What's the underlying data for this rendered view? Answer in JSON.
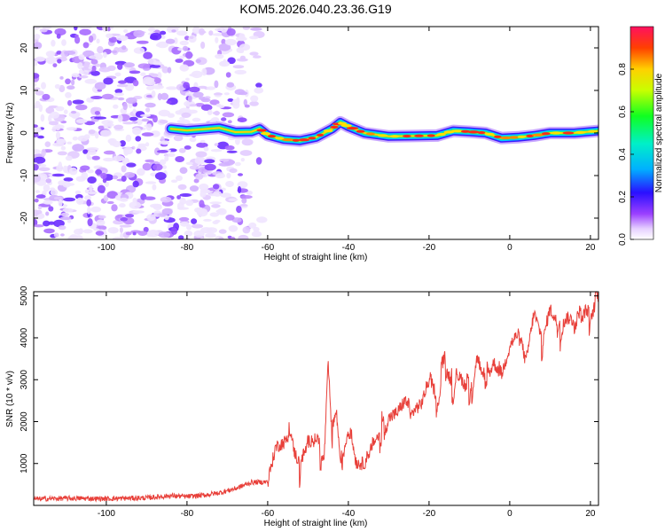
{
  "title": "KOM5.2026.040.23.36.G19",
  "chart_data": [
    {
      "type": "heatmap",
      "xlabel": "Height of straight line (km)",
      "ylabel": "Frequency (Hz)",
      "xlim": [
        -118,
        22
      ],
      "ylim": [
        -25,
        25
      ],
      "xticks": [
        -100,
        -80,
        -60,
        -40,
        -20,
        0,
        20
      ],
      "yticks": [
        -20,
        -10,
        0,
        10,
        20
      ],
      "noise_region_x": [
        -118,
        -64
      ],
      "track": [
        {
          "x": -84,
          "y": 1.0
        },
        {
          "x": -80,
          "y": 0.6
        },
        {
          "x": -76,
          "y": 0.9
        },
        {
          "x": -72,
          "y": 1.2
        },
        {
          "x": -68,
          "y": 0.2
        },
        {
          "x": -64,
          "y": 0.3
        },
        {
          "x": -62,
          "y": 1.0
        },
        {
          "x": -60,
          "y": -0.5
        },
        {
          "x": -56,
          "y": -1.5
        },
        {
          "x": -52,
          "y": -1.8
        },
        {
          "x": -48,
          "y": -1.0
        },
        {
          "x": -44,
          "y": 1.0
        },
        {
          "x": -42,
          "y": 2.5
        },
        {
          "x": -40,
          "y": 1.5
        },
        {
          "x": -36,
          "y": 0.0
        },
        {
          "x": -30,
          "y": -0.8
        },
        {
          "x": -24,
          "y": -0.7
        },
        {
          "x": -18,
          "y": -0.6
        },
        {
          "x": -14,
          "y": 0.5
        },
        {
          "x": -10,
          "y": 0.3
        },
        {
          "x": -6,
          "y": 0.0
        },
        {
          "x": -2,
          "y": -1.2
        },
        {
          "x": 2,
          "y": -1.0
        },
        {
          "x": 6,
          "y": -0.6
        },
        {
          "x": 10,
          "y": 0.0
        },
        {
          "x": 16,
          "y": 0.0
        },
        {
          "x": 22,
          "y": 0.5
        }
      ],
      "colorbar": {
        "label": "Normalized spectral amplitude",
        "range": [
          0,
          1
        ],
        "ticks": [
          "0.0",
          "0.2",
          "0.4",
          "0.6",
          "0.8"
        ]
      }
    },
    {
      "type": "line",
      "xlabel": "Height of straight line (km)",
      "ylabel": "SNR (10 * v/v)",
      "xlim": [
        -118,
        22
      ],
      "ylim": [
        0,
        5100
      ],
      "xticks": [
        -100,
        -80,
        -60,
        -40,
        -20,
        0,
        20
      ],
      "yticks": [
        1000,
        2000,
        3000,
        4000,
        5000
      ],
      "series": [
        {
          "name": "SNR",
          "color": "#e8403a",
          "x": [
            -118,
            -110,
            -100,
            -90,
            -84,
            -80,
            -76,
            -72,
            -68,
            -64,
            -60,
            -58,
            -56,
            -55,
            -54,
            -52,
            -50,
            -48,
            -46,
            -45,
            -44,
            -43,
            -42,
            -40,
            -38,
            -36,
            -34,
            -32,
            -30,
            -28,
            -26,
            -24,
            -22,
            -20,
            -18,
            -16,
            -14,
            -12,
            -10,
            -8,
            -6,
            -4,
            -2,
            0,
            2,
            4,
            6,
            8,
            10,
            12,
            14,
            16,
            18,
            20,
            22
          ],
          "y": [
            150,
            170,
            160,
            180,
            230,
            210,
            240,
            300,
            400,
            550,
            560,
            1400,
            1500,
            1600,
            1300,
            1000,
            1450,
            1700,
            1200,
            3400,
            1500,
            2200,
            1100,
            1800,
            1000,
            1000,
            1500,
            1700,
            2100,
            2200,
            2500,
            2300,
            2400,
            3000,
            2600,
            3500,
            2800,
            3000,
            2700,
            3600,
            2700,
            3400,
            3100,
            3800,
            4100,
            3400,
            4600,
            4000,
            4700,
            4300,
            4500,
            4400,
            4800,
            4600,
            4950
          ]
        }
      ]
    }
  ]
}
